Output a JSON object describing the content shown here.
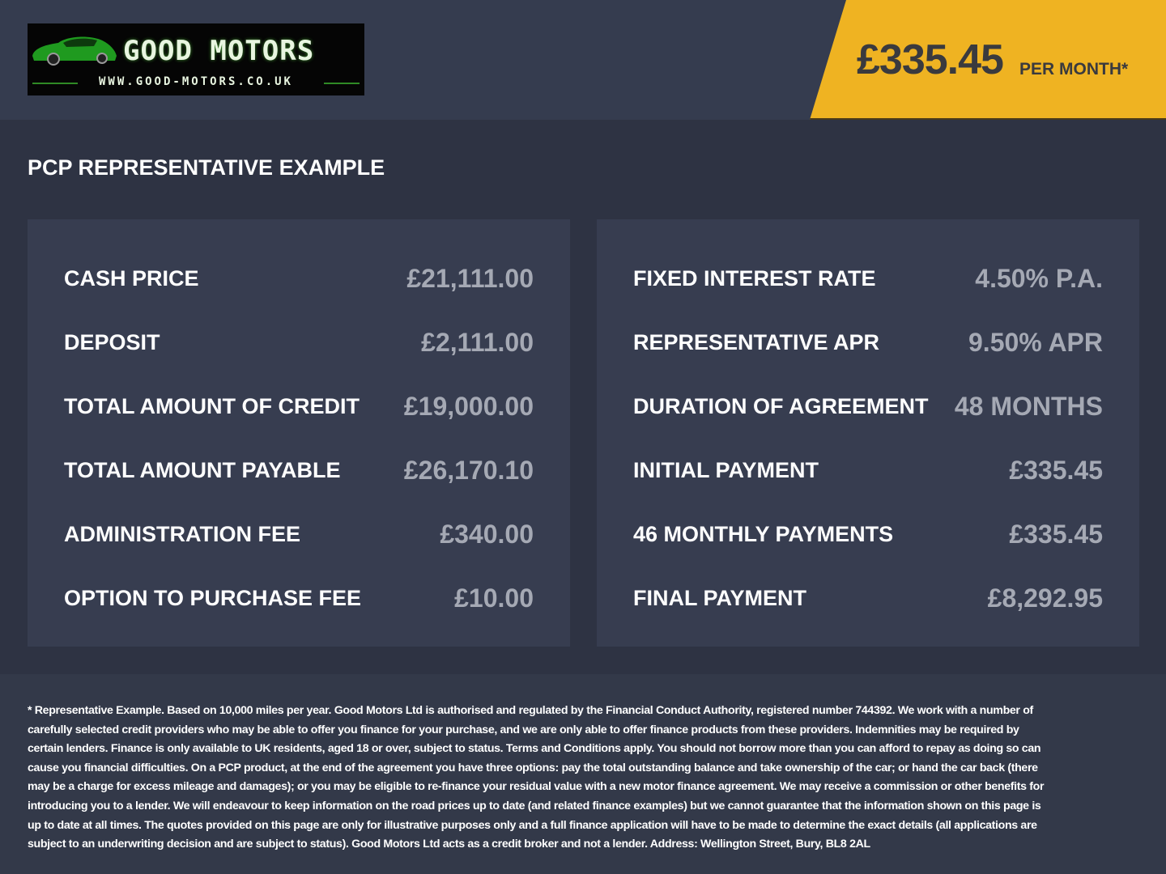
{
  "header": {
    "logo": {
      "brand": "GOOD MOTORS",
      "url": "WWW.GOOD-MOTORS.CO.UK"
    },
    "price": "£335.45",
    "per_month": "PER MONTH*",
    "accent_color": "#efb322"
  },
  "title": "PCP REPRESENTATIVE EXAMPLE",
  "left_rows": [
    {
      "label": "CASH PRICE",
      "value": "£21,111.00"
    },
    {
      "label": "DEPOSIT",
      "value": "£2,111.00"
    },
    {
      "label": "TOTAL AMOUNT OF CREDIT",
      "value": "£19,000.00"
    },
    {
      "label": "TOTAL AMOUNT PAYABLE",
      "value": "£26,170.10"
    },
    {
      "label": "ADMINISTRATION FEE",
      "value": "£340.00"
    },
    {
      "label": "OPTION TO PURCHASE FEE",
      "value": "£10.00"
    }
  ],
  "right_rows": [
    {
      "label": "FIXED INTEREST RATE",
      "value": "4.50% P.A."
    },
    {
      "label": "REPRESENTATIVE APR",
      "value": "9.50% APR"
    },
    {
      "label": "DURATION OF AGREEMENT",
      "value": "48 MONTHS"
    },
    {
      "label": "INITIAL PAYMENT",
      "value": "£335.45"
    },
    {
      "label": "46 MONTHLY PAYMENTS",
      "value": "£335.45"
    },
    {
      "label": "FINAL PAYMENT",
      "value": "£8,292.95"
    }
  ],
  "disclaimer": "* Representative Example. Based on 10,000 miles per year. Good Motors Ltd is authorised and regulated by the Financial Conduct Authority, registered number 744392. We work with a number of carefully selected credit providers who may be able to offer you finance for your purchase, and we are only able to offer finance products from these providers. Indemnities may be required by certain lenders. Finance is only available to UK residents, aged 18 or over, subject to status. Terms and Conditions apply. You should not borrow more than you can afford to repay as doing so can cause you financial difficulties. On a PCP product, at the end of the agreement you have three options: pay the total outstanding balance and take ownership of the car; or hand the car back (there may be a charge for excess mileage and damages); or you may be eligible to re-finance your residual value with a new motor finance agreement. We may receive a commission or other benefits for introducing you to a lender. We will endeavour to keep information on the road prices up to date (and related finance examples) but we cannot guarantee that the information shown on this page is up to date at all times. The quotes provided on this page are only for illustrative purposes only and a full finance application will have to be made to determine the exact details (all applications are subject to an underwriting decision and are subject to status). Good Motors Ltd acts as a credit broker and not a lender. Address: Wellington Street, Bury, BL8 2AL"
}
